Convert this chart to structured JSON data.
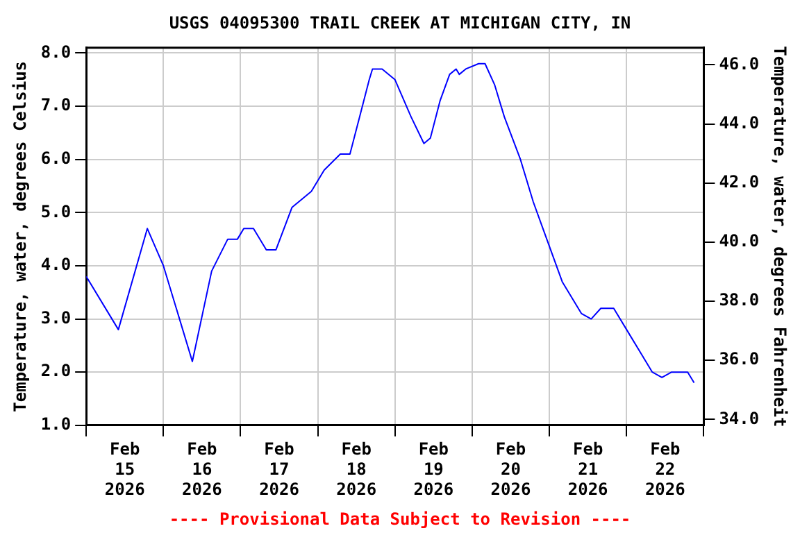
{
  "chart_data": {
    "type": "line",
    "title": "USGS 04095300 TRAIL CREEK AT MICHIGAN CITY, IN",
    "ylabel": "Temperature, water, degrees Celsius",
    "y2label": "Temperature, water, degrees Fahrenheit",
    "annotations": [
      "---- Provisional Data Subject to Revision ----"
    ],
    "x": [
      "2026-02-15T00:00",
      "2026-02-15T10:00",
      "2026-02-15T19:00",
      "2026-02-16T00:00",
      "2026-02-16T09:00",
      "2026-02-16T15:00",
      "2026-02-16T20:00",
      "2026-02-16T23:00",
      "2026-02-17T01:00",
      "2026-02-17T04:00",
      "2026-02-17T08:00",
      "2026-02-17T11:00",
      "2026-02-17T16:00",
      "2026-02-17T22:00",
      "2026-02-18T02:00",
      "2026-02-18T07:00",
      "2026-02-18T10:00",
      "2026-02-18T13:00",
      "2026-02-18T16:00",
      "2026-02-18T17:00",
      "2026-02-18T20:00",
      "2026-02-19T00:00",
      "2026-02-19T05:00",
      "2026-02-19T09:00",
      "2026-02-19T11:00",
      "2026-02-19T14:00",
      "2026-02-19T17:00",
      "2026-02-19T19:00",
      "2026-02-19T20:00",
      "2026-02-19T22:00",
      "2026-02-20T02:00",
      "2026-02-20T04:00",
      "2026-02-20T07:00",
      "2026-02-20T10:00",
      "2026-02-20T15:00",
      "2026-02-20T19:00",
      "2026-02-20T22:00",
      "2026-02-21T04:00",
      "2026-02-21T10:00",
      "2026-02-21T13:00",
      "2026-02-21T16:00",
      "2026-02-21T20:00",
      "2026-02-22T00:00",
      "2026-02-22T08:00",
      "2026-02-22T11:00",
      "2026-02-22T14:00",
      "2026-02-22T19:00",
      "2026-02-22T21:00"
    ],
    "series": [
      {
        "color": "#0000ff",
        "values": [
          3.8,
          2.8,
          4.7,
          4.0,
          2.2,
          3.9,
          4.5,
          4.5,
          4.7,
          4.7,
          4.3,
          4.3,
          5.1,
          5.4,
          5.8,
          6.1,
          6.1,
          6.8,
          7.5,
          7.7,
          7.7,
          7.5,
          6.8,
          6.3,
          6.4,
          7.1,
          7.6,
          7.7,
          7.6,
          7.7,
          7.8,
          7.8,
          7.4,
          6.8,
          6.0,
          5.2,
          4.7,
          3.7,
          3.1,
          3.0,
          3.2,
          3.2,
          2.8,
          2.0,
          1.9,
          2.0,
          2.0,
          1.8
        ]
      }
    ],
    "xlim": [
      "2026-02-15T00:00",
      "2026-02-23T00:00"
    ],
    "xticks": [
      {
        "value": "2026-02-15T00:00",
        "label": null
      },
      {
        "value": "2026-02-15T12:00",
        "label": "Feb 15 2026"
      },
      {
        "value": "2026-02-16T00:00",
        "label": null
      },
      {
        "value": "2026-02-16T12:00",
        "label": "Feb 16 2026"
      },
      {
        "value": "2026-02-17T00:00",
        "label": null
      },
      {
        "value": "2026-02-17T12:00",
        "label": "Feb 17 2026"
      },
      {
        "value": "2026-02-18T00:00",
        "label": null
      },
      {
        "value": "2026-02-18T12:00",
        "label": "Feb 18 2026"
      },
      {
        "value": "2026-02-19T00:00",
        "label": null
      },
      {
        "value": "2026-02-19T12:00",
        "label": "Feb 19 2026"
      },
      {
        "value": "2026-02-20T00:00",
        "label": null
      },
      {
        "value": "2026-02-20T12:00",
        "label": "Feb 20 2026"
      },
      {
        "value": "2026-02-21T00:00",
        "label": null
      },
      {
        "value": "2026-02-21T12:00",
        "label": "Feb 21 2026"
      },
      {
        "value": "2026-02-22T00:00",
        "label": null
      },
      {
        "value": "2026-02-22T12:00",
        "label": "Feb 22 2026"
      },
      {
        "value": "2026-02-23T00:00",
        "label": null
      }
    ],
    "ylim": [
      1,
      8.1
    ],
    "yticks": [
      {
        "value": 1,
        "label": "1.0"
      },
      {
        "value": 2,
        "label": "2.0"
      },
      {
        "value": 3,
        "label": "3.0"
      },
      {
        "value": 4,
        "label": "4.0"
      },
      {
        "value": 5,
        "label": "5.0"
      },
      {
        "value": 6,
        "label": "6.0"
      },
      {
        "value": 7,
        "label": "7.0"
      },
      {
        "value": 8,
        "label": "8.0"
      }
    ],
    "y2lim": [
      33.8,
      46.58
    ],
    "y2ticks": [
      {
        "value": 34,
        "label": "34.0"
      },
      {
        "value": 36,
        "label": "36.0"
      },
      {
        "value": 38,
        "label": "38.0"
      },
      {
        "value": 40,
        "label": "40.0"
      },
      {
        "value": 42,
        "label": "42.0"
      },
      {
        "value": 44,
        "label": "44.0"
      },
      {
        "value": 46,
        "label": "46.0"
      }
    ],
    "grid": true,
    "legend": false,
    "marker": "none",
    "line_style": "solid"
  }
}
